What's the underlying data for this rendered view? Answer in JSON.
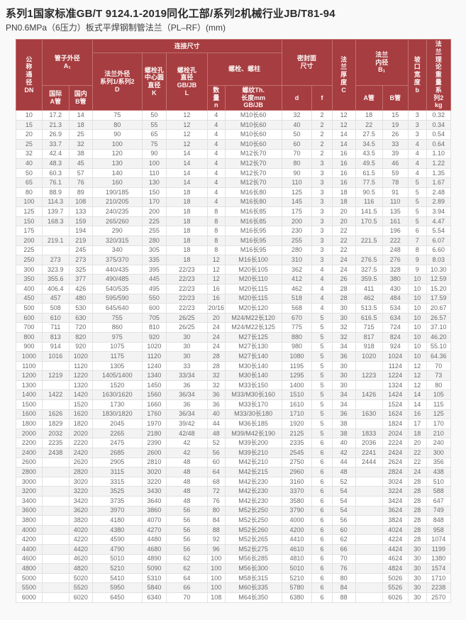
{
  "page": {
    "title": "系列1国家标准GB/T 9124.1-2019同化工部/系列2机械行业JB/T81-94",
    "subtitle": "PN0.6MPa（6压力）板式平焊钢制管法兰（PL–RF）(mm)"
  },
  "colors": {
    "header_bg": "#a63d40",
    "header_text": "#fdf4f4",
    "row_alt_bg": "#f3f3f3",
    "data_text": "#6b6b6b"
  },
  "table": {
    "headers": {
      "dn": "公\n称\n通\n径\nDN",
      "pipe_od_group": "管子外径\nA₁",
      "pipe_od_intl": "国际\nA管",
      "pipe_od_dom": "国内\nB管",
      "connection_group": "连接尺寸",
      "flange_od": "法兰外径\n系列1/系列2\nD",
      "bolt_circle": "螺栓孔\n中心圆\n直径\nK",
      "bolt_hole": "螺栓孔\n直径\nGB/JB\nL",
      "bolt_group": "螺栓、螺柱",
      "bolt_qty": "数\n量\nn",
      "bolt_thread": "螺纹Th.\n长度mm\nGB/JB",
      "seal_group": "密封面\n尺寸",
      "seal_d": "d",
      "seal_f": "f",
      "thickness": "法\n兰\n厚\n度\nC",
      "bore_group": "法兰\n内径\nB₁",
      "bore_a": "A管",
      "bore_b": "B管",
      "groove": "坡\n口\n宽\n度\nb",
      "weight": "法\n兰\n理\n论\n重\n量\n系\n列2\nkg"
    },
    "rows": [
      [
        "10",
        "17.2",
        "14",
        "75",
        "50",
        "12",
        "4",
        "M10长60",
        "32",
        "2",
        "12",
        "18",
        "15",
        "3",
        "0.32"
      ],
      [
        "15",
        "21.3",
        "18",
        "80",
        "55",
        "12",
        "4",
        "M10长60",
        "40",
        "2",
        "12",
        "22",
        "19",
        "3",
        "0.34"
      ],
      [
        "20",
        "26.9",
        "25",
        "90",
        "65",
        "12",
        "4",
        "M10长60",
        "50",
        "2",
        "14",
        "27.5",
        "26",
        "3",
        "0.54"
      ],
      [
        "25",
        "33.7",
        "32",
        "100",
        "75",
        "12",
        "4",
        "M10长60",
        "60",
        "2",
        "14",
        "34.5",
        "33",
        "4",
        "0.64"
      ],
      [
        "32",
        "42.4",
        "38",
        "120",
        "90",
        "14",
        "4",
        "M12长70",
        "70",
        "2",
        "16",
        "43.5",
        "39",
        "4",
        "1.10"
      ],
      [
        "40",
        "48.3",
        "45",
        "130",
        "100",
        "14",
        "4",
        "M12长70",
        "80",
        "3",
        "16",
        "49.5",
        "46",
        "4",
        "1.22"
      ],
      [
        "50",
        "60.3",
        "57",
        "140",
        "110",
        "14",
        "4",
        "M12长70",
        "90",
        "3",
        "16",
        "61.5",
        "59",
        "4",
        "1.35"
      ],
      [
        "65",
        "76.1",
        "76",
        "160",
        "130",
        "14",
        "4",
        "M12长70",
        "110",
        "3",
        "16",
        "77.5",
        "78",
        "5",
        "1.67"
      ],
      [
        "80",
        "88.9",
        "89",
        "190/185",
        "150",
        "18",
        "4",
        "M16长80",
        "125",
        "3",
        "18",
        "90.5",
        "91",
        "5",
        "2.48"
      ],
      [
        "100",
        "114.3",
        "108",
        "210/205",
        "170",
        "18",
        "4",
        "M16长80",
        "145",
        "3",
        "18",
        "116",
        "110",
        "5",
        "2.89"
      ],
      [
        "125",
        "139.7",
        "133",
        "240/235",
        "200",
        "18",
        "8",
        "M16长85",
        "175",
        "3",
        "20",
        "141.5",
        "135",
        "5",
        "3.94"
      ],
      [
        "150",
        "168.3",
        "159",
        "265/260",
        "225",
        "18",
        "8",
        "M16长85",
        "200",
        "3",
        "20",
        "170.5",
        "161",
        "5",
        "4.47"
      ],
      [
        "175",
        "",
        "194",
        "290",
        "255",
        "18",
        "8",
        "M16长95",
        "230",
        "3",
        "22",
        "",
        "196",
        "6",
        "5.54"
      ],
      [
        "200",
        "219.1",
        "219",
        "320/315",
        "280",
        "18",
        "8",
        "M16长95",
        "255",
        "3",
        "22",
        "221.5",
        "222",
        "7",
        "6.07"
      ],
      [
        "225",
        "",
        "245",
        "340",
        "305",
        "18",
        "8",
        "M16长95",
        "280",
        "3",
        "22",
        "",
        "248",
        "8",
        "6.60"
      ],
      [
        "250",
        "273",
        "273",
        "375/370",
        "335",
        "18",
        "12",
        "M16长100",
        "310",
        "3",
        "24",
        "276.5",
        "276",
        "9",
        "8.03"
      ],
      [
        "300",
        "323.9",
        "325",
        "440/435",
        "395",
        "22/23",
        "12",
        "M20长105",
        "362",
        "4",
        "24",
        "327.5",
        "328",
        "9",
        "10.30"
      ],
      [
        "350",
        "355.6",
        "377",
        "490/485",
        "445",
        "22/23",
        "12",
        "M20长110",
        "412",
        "4",
        "26",
        "359.5",
        "380",
        "10",
        "12.59"
      ],
      [
        "400",
        "406.4",
        "426",
        "540/535",
        "495",
        "22/23",
        "16",
        "M20长115",
        "462",
        "4",
        "28",
        "411",
        "430",
        "10",
        "15.20"
      ],
      [
        "450",
        "457",
        "480",
        "595/590",
        "550",
        "22/23",
        "16",
        "M20长115",
        "518",
        "4",
        "28",
        "462",
        "484",
        "10",
        "17.59"
      ],
      [
        "500",
        "508",
        "530",
        "645/640",
        "600",
        "22/23",
        "20/16",
        "M20长120",
        "568",
        "4",
        "30",
        "513.5",
        "534",
        "10",
        "20.67"
      ],
      [
        "600",
        "610",
        "630",
        "755",
        "705",
        "26/25",
        "20",
        "M24/M22长120",
        "670",
        "5",
        "30",
        "616.5",
        "634",
        "10",
        "26.57"
      ],
      [
        "700",
        "711",
        "720",
        "860",
        "810",
        "26/25",
        "24",
        "M24/M22长125",
        "775",
        "5",
        "32",
        "715",
        "724",
        "10",
        "37.10"
      ],
      [
        "800",
        "813",
        "820",
        "975",
        "920",
        "30",
        "24",
        "M27长125",
        "880",
        "5",
        "32",
        "817",
        "824",
        "10",
        "46.20"
      ],
      [
        "900",
        "914",
        "920",
        "1075",
        "1020",
        "30",
        "24",
        "M27长130",
        "980",
        "5",
        "34",
        "918",
        "924",
        "10",
        "55.10"
      ],
      [
        "1000",
        "1016",
        "1020",
        "1175",
        "1120",
        "30",
        "28",
        "M27长140",
        "1080",
        "5",
        "36",
        "1020",
        "1024",
        "10",
        "64.36"
      ],
      [
        "1100",
        "",
        "1120",
        "1305",
        "1240",
        "33",
        "28",
        "M30长140",
        "1195",
        "5",
        "30",
        "",
        "1124",
        "12",
        "70"
      ],
      [
        "1200",
        "1219",
        "1220",
        "1405/1400",
        "1340",
        "33/34",
        "32",
        "M30长140",
        "1295",
        "5",
        "30",
        "1223",
        "1224",
        "12",
        "73"
      ],
      [
        "1300",
        "",
        "1320",
        "1520",
        "1450",
        "36",
        "32",
        "M33长150",
        "1400",
        "5",
        "30",
        "",
        "1324",
        "12",
        "80"
      ],
      [
        "1400",
        "1422",
        "1420",
        "1630/1620",
        "1560",
        "36/34",
        "36",
        "M33/M30长160",
        "1510",
        "5",
        "34",
        "1426",
        "1424",
        "14",
        "105"
      ],
      [
        "1500",
        "",
        "1520",
        "1730",
        "1660",
        "36",
        "36",
        "M33长170",
        "1610",
        "5",
        "34",
        "",
        "1524",
        "14",
        "115"
      ],
      [
        "1600",
        "1626",
        "1620",
        "1830/1820",
        "1760",
        "36/34",
        "40",
        "M33/30长180",
        "1710",
        "5",
        "36",
        "1630",
        "1624",
        "16",
        "125"
      ],
      [
        "1800",
        "1829",
        "1820",
        "2045",
        "1970",
        "39/42",
        "44",
        "M36长185",
        "1920",
        "5",
        "38",
        "",
        "1824",
        "17",
        "170"
      ],
      [
        "2000",
        "2032",
        "2020",
        "2265",
        "2180",
        "42/48",
        "48",
        "M39/M42长190",
        "2125",
        "5",
        "38",
        "1833",
        "2024",
        "18",
        "210"
      ],
      [
        "2200",
        "2235",
        "2220",
        "2475",
        "2390",
        "42",
        "52",
        "M39长200",
        "2335",
        "6",
        "40",
        "2036",
        "2224",
        "20",
        "240"
      ],
      [
        "2400",
        "2438",
        "2420",
        "2685",
        "2600",
        "42",
        "56",
        "M39长210",
        "2545",
        "6",
        "42",
        "2241",
        "2424",
        "22",
        "300"
      ],
      [
        "2600",
        "",
        "2620",
        "2905",
        "2810",
        "48",
        "60",
        "M42长210",
        "2750",
        "6",
        "44",
        "2444",
        "2624",
        "22",
        "356"
      ],
      [
        "2800",
        "",
        "2820",
        "3115",
        "3020",
        "48",
        "64",
        "M42长215",
        "2960",
        "6",
        "48",
        "",
        "2824",
        "24",
        "438"
      ],
      [
        "3000",
        "",
        "3020",
        "3315",
        "3220",
        "48",
        "68",
        "M42长230",
        "3160",
        "6",
        "52",
        "",
        "3024",
        "28",
        "510"
      ],
      [
        "3200",
        "",
        "3220",
        "3525",
        "3430",
        "48",
        "72",
        "M42长230",
        "3370",
        "6",
        "54",
        "",
        "3224",
        "28",
        "588"
      ],
      [
        "3400",
        "",
        "3420",
        "3735",
        "3640",
        "48",
        "76",
        "M42长230",
        "3580",
        "6",
        "54",
        "",
        "3424",
        "28",
        "647"
      ],
      [
        "3600",
        "",
        "3620",
        "3970",
        "3860",
        "56",
        "80",
        "M52长250",
        "3790",
        "6",
        "54",
        "",
        "3624",
        "28",
        "749"
      ],
      [
        "3800",
        "",
        "3820",
        "4180",
        "4070",
        "56",
        "84",
        "M52长250",
        "4000",
        "6",
        "56",
        "",
        "3824",
        "28",
        "848"
      ],
      [
        "4000",
        "",
        "4020",
        "4380",
        "4270",
        "56",
        "88",
        "M52长260",
        "4200",
        "6",
        "60",
        "",
        "4024",
        "28",
        "958"
      ],
      [
        "4200",
        "",
        "4220",
        "4590",
        "4480",
        "56",
        "92",
        "M52长265",
        "4410",
        "6",
        "62",
        "",
        "4224",
        "28",
        "1074"
      ],
      [
        "4400",
        "",
        "4420",
        "4790",
        "4680",
        "56",
        "96",
        "M52长275",
        "4610",
        "6",
        "66",
        "",
        "4424",
        "30",
        "1199"
      ],
      [
        "4600",
        "",
        "4620",
        "5010",
        "4890",
        "62",
        "100",
        "M56长285",
        "4810",
        "6",
        "70",
        "",
        "4624",
        "30",
        "1380"
      ],
      [
        "4800",
        "",
        "4820",
        "5210",
        "5090",
        "62",
        "100",
        "M56长300",
        "5010",
        "6",
        "76",
        "",
        "4824",
        "30",
        "1574"
      ],
      [
        "5000",
        "",
        "5020",
        "5410",
        "5310",
        "64",
        "100",
        "M58长315",
        "5210",
        "6",
        "80",
        "",
        "5026",
        "30",
        "1710"
      ],
      [
        "5500",
        "",
        "5520",
        "5950",
        "5840",
        "66",
        "100",
        "M60长335",
        "5780",
        "6",
        "84",
        "",
        "5526",
        "30",
        "2238"
      ],
      [
        "6000",
        "",
        "6020",
        "6450",
        "6340",
        "70",
        "108",
        "M64长350",
        "6380",
        "6",
        "88",
        "",
        "6026",
        "30",
        "2570"
      ]
    ]
  }
}
